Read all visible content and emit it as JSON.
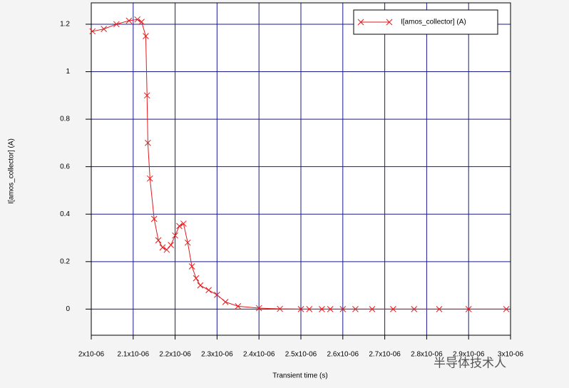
{
  "chart_data": {
    "type": "line",
    "title_legend_corner": "top-right",
    "xlabel": "Transient time (s)",
    "ylabel": "I[amos_collector] (A)",
    "annotations": [
      "半导体技术人"
    ],
    "grid": true,
    "legend": "top-right",
    "xlim": [
      2e-06,
      3e-06
    ],
    "ylim": [
      -0.11,
      1.29
    ],
    "xticks": [
      {
        "value": 2e-06,
        "label": "2x10-06"
      },
      {
        "value": 2.1e-06,
        "label": "2.1x10-06"
      },
      {
        "value": 2.2e-06,
        "label": "2.2x10-06"
      },
      {
        "value": 2.3e-06,
        "label": "2.3x10-06"
      },
      {
        "value": 2.4e-06,
        "label": "2.4x10-06"
      },
      {
        "value": 2.5e-06,
        "label": "2.5x10-06"
      },
      {
        "value": 2.6e-06,
        "label": "2.6x10-06"
      },
      {
        "value": 2.7e-06,
        "label": "2.7x10-06"
      },
      {
        "value": 2.8e-06,
        "label": "2.8x10-06"
      },
      {
        "value": 2.9e-06,
        "label": "2.9x10-06"
      },
      {
        "value": 3e-06,
        "label": "3x10-06"
      }
    ],
    "yticks": [
      0,
      0.2,
      0.4,
      0.6,
      0.8,
      1,
      1.2
    ],
    "x": [
      2.003e-06,
      2.03e-06,
      2.06e-06,
      2.09e-06,
      2.11e-06,
      2.12e-06,
      2.13e-06,
      2.133e-06,
      2.135e-06,
      2.14e-06,
      2.15e-06,
      2.16e-06,
      2.17e-06,
      2.18e-06,
      2.19e-06,
      2.2e-06,
      2.21e-06,
      2.22e-06,
      2.23e-06,
      2.24e-06,
      2.25e-06,
      2.26e-06,
      2.28e-06,
      2.3e-06,
      2.32e-06,
      2.35e-06,
      2.4e-06,
      2.45e-06,
      2.5e-06,
      2.52e-06,
      2.55e-06,
      2.57e-06,
      2.6e-06,
      2.63e-06,
      2.67e-06,
      2.72e-06,
      2.77e-06,
      2.83e-06,
      2.9e-06,
      2.99e-06
    ],
    "series": [
      {
        "name": "I[amos_collector] (A)",
        "color": "#e31a1c",
        "values": [
          1.17,
          1.18,
          1.2,
          1.215,
          1.22,
          1.21,
          1.15,
          0.9,
          0.7,
          0.55,
          0.38,
          0.29,
          0.26,
          0.25,
          0.27,
          0.31,
          0.35,
          0.36,
          0.28,
          0.18,
          0.13,
          0.1,
          0.08,
          0.06,
          0.03,
          0.012,
          0.004,
          0.001,
          0,
          0,
          0,
          0,
          0,
          0,
          0,
          0,
          0,
          0,
          0,
          0
        ]
      }
    ]
  }
}
